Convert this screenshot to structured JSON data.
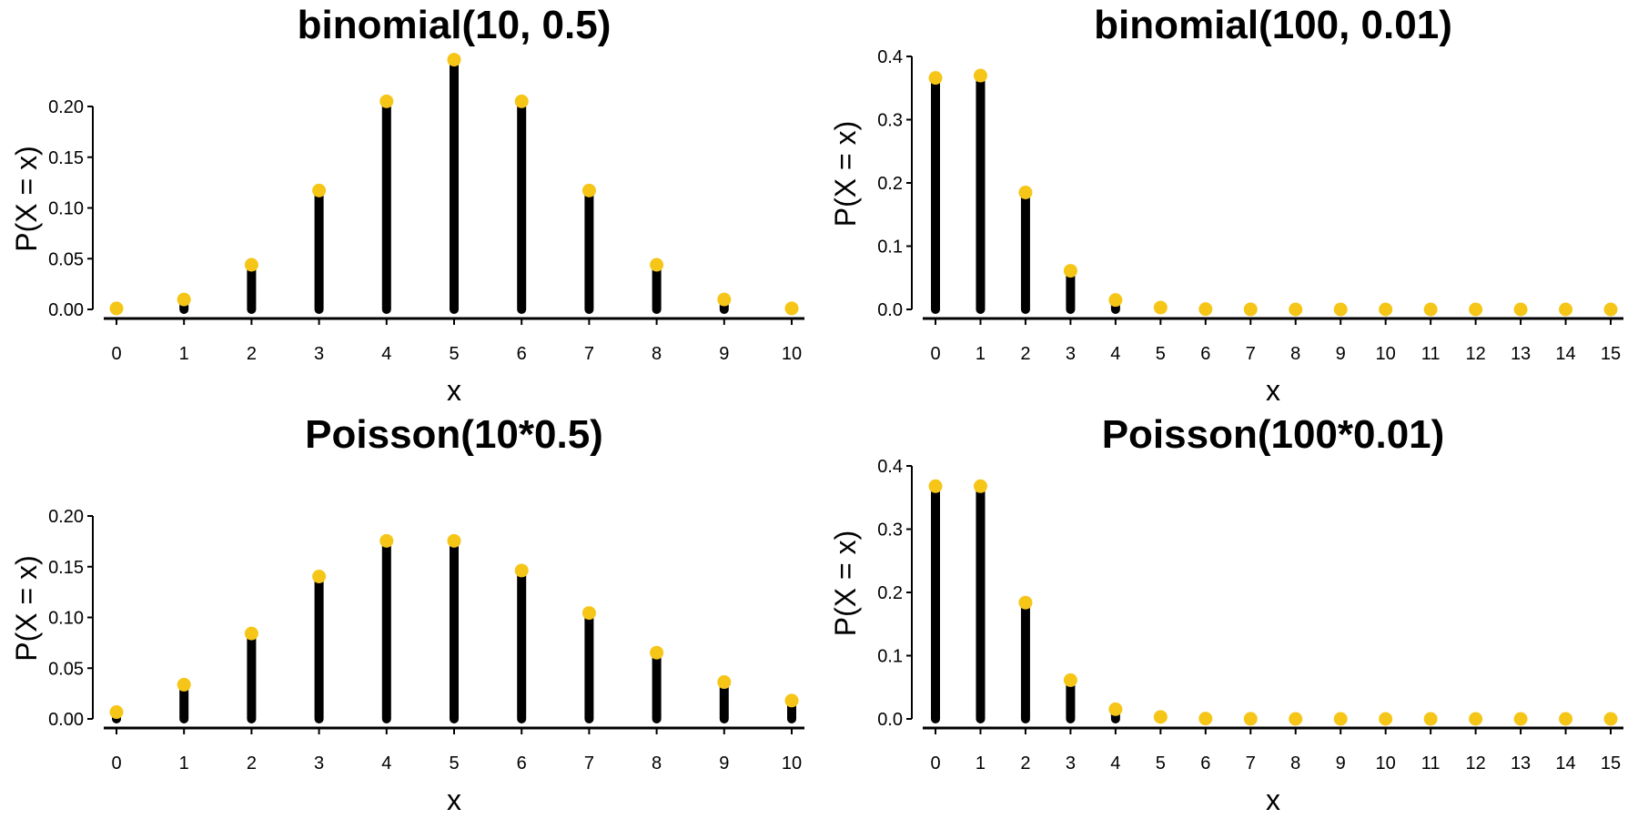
{
  "style": {
    "stem_color": "#000000",
    "point_color": "#F5C518"
  },
  "chart_data": [
    {
      "type": "lollipop",
      "title": "binomial(10, 0.5)",
      "xlabel": "x",
      "ylabel": "P(X = x)",
      "x": [
        0,
        1,
        2,
        3,
        4,
        5,
        6,
        7,
        8,
        9,
        10
      ],
      "xticks": [
        "0",
        "1",
        "2",
        "3",
        "4",
        "5",
        "6",
        "7",
        "8",
        "9",
        "10"
      ],
      "y": [
        0.00098,
        0.00977,
        0.04395,
        0.11719,
        0.20508,
        0.24609,
        0.20508,
        0.11719,
        0.04395,
        0.00977,
        0.00098
      ],
      "yticks": [
        "0.00",
        "0.05",
        "0.10",
        "0.15",
        "0.20"
      ],
      "ytick_values": [
        0,
        0.05,
        0.1,
        0.15,
        0.2
      ],
      "ylim": [
        0,
        0.25
      ],
      "xlim": [
        0,
        10
      ],
      "grid": false
    },
    {
      "type": "lollipop",
      "title": "binomial(100, 0.01)",
      "xlabel": "x",
      "ylabel": "P(X = x)",
      "x": [
        0,
        1,
        2,
        3,
        4,
        5,
        6,
        7,
        8,
        9,
        10,
        11,
        12,
        13,
        14,
        15
      ],
      "xticks": [
        "0",
        "1",
        "2",
        "3",
        "4",
        "5",
        "6",
        "7",
        "8",
        "9",
        "10",
        "11",
        "12",
        "13",
        "14",
        "15"
      ],
      "y": [
        0.366,
        0.3697,
        0.1849,
        0.061,
        0.0149,
        0.0029,
        0.0005,
        0.0001,
        0,
        0,
        0,
        0,
        0,
        0,
        0,
        0
      ],
      "yticks": [
        "0.0",
        "0.1",
        "0.2",
        "0.3",
        "0.4"
      ],
      "ytick_values": [
        0,
        0.1,
        0.2,
        0.3,
        0.4
      ],
      "ylim": [
        0,
        0.4
      ],
      "xlim": [
        0,
        15
      ],
      "grid": false
    },
    {
      "type": "lollipop",
      "title": "Poisson(10*0.5)",
      "xlabel": "x",
      "ylabel": "P(X = x)",
      "x": [
        0,
        1,
        2,
        3,
        4,
        5,
        6,
        7,
        8,
        9,
        10
      ],
      "xticks": [
        "0",
        "1",
        "2",
        "3",
        "4",
        "5",
        "6",
        "7",
        "8",
        "9",
        "10"
      ],
      "y": [
        0.0067,
        0.0337,
        0.0842,
        0.1404,
        0.1755,
        0.1755,
        0.1462,
        0.1044,
        0.0653,
        0.0363,
        0.0181
      ],
      "yticks": [
        "0.00",
        "0.05",
        "0.10",
        "0.15",
        "0.20"
      ],
      "ytick_values": [
        0,
        0.05,
        0.1,
        0.15,
        0.2
      ],
      "ylim": [
        0,
        0.2
      ],
      "xlim": [
        0,
        10
      ],
      "grid": false
    },
    {
      "type": "lollipop",
      "title": "Poisson(100*0.01)",
      "xlabel": "x",
      "ylabel": "P(X = x)",
      "x": [
        0,
        1,
        2,
        3,
        4,
        5,
        6,
        7,
        8,
        9,
        10,
        11,
        12,
        13,
        14,
        15
      ],
      "xticks": [
        "0",
        "1",
        "2",
        "3",
        "4",
        "5",
        "6",
        "7",
        "8",
        "9",
        "10",
        "11",
        "12",
        "13",
        "14",
        "15"
      ],
      "y": [
        0.3679,
        0.3679,
        0.1839,
        0.0613,
        0.0153,
        0.0031,
        0.0005,
        0.0001,
        0,
        0,
        0,
        0,
        0,
        0,
        0,
        0
      ],
      "yticks": [
        "0.0",
        "0.1",
        "0.2",
        "0.3",
        "0.4"
      ],
      "ytick_values": [
        0,
        0.1,
        0.2,
        0.3,
        0.4
      ],
      "ylim": [
        0,
        0.4
      ],
      "xlim": [
        0,
        15
      ],
      "grid": false
    }
  ]
}
